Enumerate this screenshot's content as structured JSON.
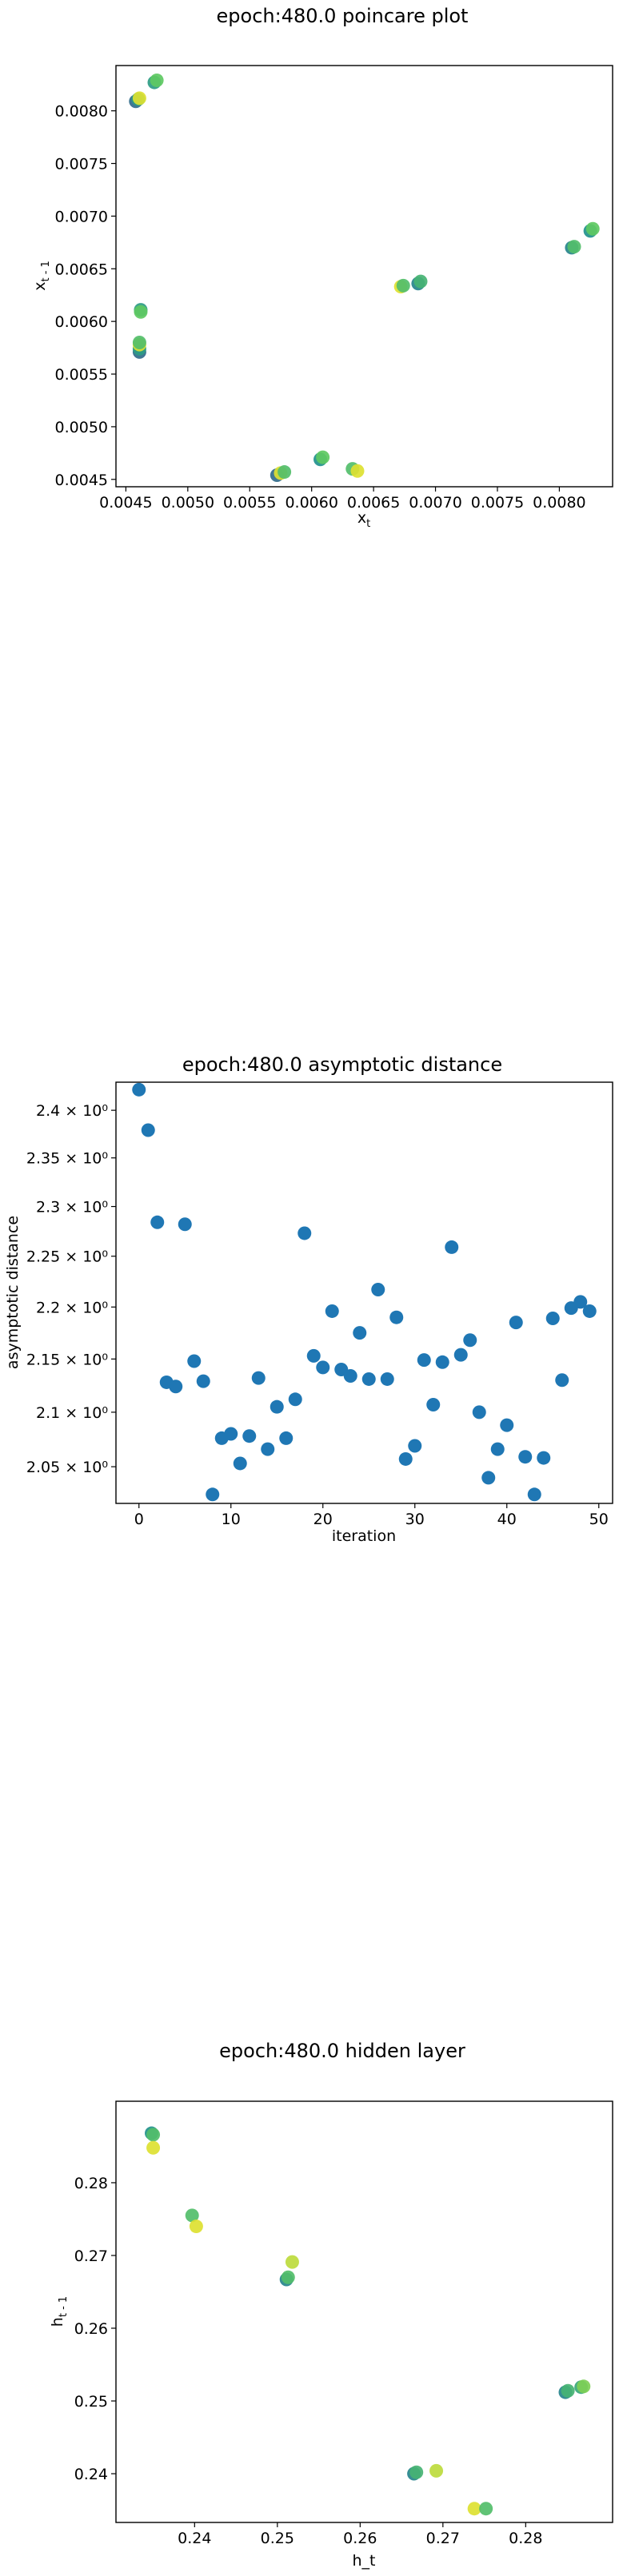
{
  "charts_meta": {
    "accent": "#1f77b4"
  },
  "chart_data": [
    {
      "id": "poincare",
      "type": "scatter",
      "title": "epoch:480.0 poincare plot",
      "xlabel": "x",
      "xlabel_sub": "t",
      "ylabel": "x",
      "ylabel_sub": "t - 1",
      "xlim": [
        0.00442,
        0.00843
      ],
      "ylim": [
        0.00443,
        0.00843
      ],
      "xticks": [
        0.0045,
        0.005,
        0.0055,
        0.006,
        0.0065,
        0.007,
        0.0075,
        0.008
      ],
      "xtick_labels": [
        "0.0045",
        "0.0050",
        "0.0055",
        "0.0060",
        "0.0065",
        "0.0070",
        "0.0075",
        "0.0080"
      ],
      "yticks": [
        0.0045,
        0.005,
        0.0055,
        0.006,
        0.0065,
        0.007,
        0.0075,
        0.008
      ],
      "ytick_labels": [
        "0.0045",
        "0.0050",
        "0.0055",
        "0.0060",
        "0.0065",
        "0.0070",
        "0.0075",
        "0.0080"
      ],
      "colormap": "viridis",
      "grid": false,
      "points": [
        {
          "x": 0.00458,
          "y": 0.00809,
          "c": 0.35
        },
        {
          "x": 0.0046,
          "y": 0.00811,
          "c": 0.55
        },
        {
          "x": 0.00461,
          "y": 0.00812,
          "c": 0.95
        },
        {
          "x": 0.00473,
          "y": 0.00827,
          "c": 0.55
        },
        {
          "x": 0.00475,
          "y": 0.00829,
          "c": 0.75
        },
        {
          "x": 0.00462,
          "y": 0.00611,
          "c": 0.55
        },
        {
          "x": 0.00462,
          "y": 0.00609,
          "c": 0.75
        },
        {
          "x": 0.00461,
          "y": 0.00571,
          "c": 0.35
        },
        {
          "x": 0.00461,
          "y": 0.00574,
          "c": 0.55
        },
        {
          "x": 0.00461,
          "y": 0.00578,
          "c": 0.95
        },
        {
          "x": 0.00461,
          "y": 0.0058,
          "c": 0.7
        },
        {
          "x": 0.00572,
          "y": 0.00454,
          "c": 0.35
        },
        {
          "x": 0.00575,
          "y": 0.00456,
          "c": 0.95
        },
        {
          "x": 0.00578,
          "y": 0.00457,
          "c": 0.7
        },
        {
          "x": 0.00607,
          "y": 0.00469,
          "c": 0.5
        },
        {
          "x": 0.00609,
          "y": 0.00471,
          "c": 0.75
        },
        {
          "x": 0.00633,
          "y": 0.0046,
          "c": 0.7
        },
        {
          "x": 0.00637,
          "y": 0.00458,
          "c": 0.95
        },
        {
          "x": 0.00672,
          "y": 0.00633,
          "c": 0.95
        },
        {
          "x": 0.00674,
          "y": 0.00634,
          "c": 0.7
        },
        {
          "x": 0.00686,
          "y": 0.00636,
          "c": 0.45
        },
        {
          "x": 0.00688,
          "y": 0.00638,
          "c": 0.65
        },
        {
          "x": 0.0081,
          "y": 0.0067,
          "c": 0.45
        },
        {
          "x": 0.00812,
          "y": 0.00671,
          "c": 0.7
        },
        {
          "x": 0.00825,
          "y": 0.00686,
          "c": 0.5
        },
        {
          "x": 0.00827,
          "y": 0.00688,
          "c": 0.75
        }
      ]
    },
    {
      "id": "asymptotic",
      "type": "scatter",
      "title": "epoch:480.0 asymptotic distance",
      "xlabel": "iteration",
      "ylabel": "asymptotic distance",
      "xlim": [
        -2.5,
        51.5
      ],
      "ylim": [
        2.017,
        2.43
      ],
      "log_y": true,
      "xticks": [
        0,
        10,
        20,
        30,
        40,
        50
      ],
      "xtick_labels": [
        "0",
        "10",
        "20",
        "30",
        "40",
        "50"
      ],
      "yticks": [
        2.05,
        2.1,
        2.15,
        2.2,
        2.25,
        2.3,
        2.35,
        2.4
      ],
      "ytick_labels": [
        "2.05 × 10⁰",
        "2.1 × 10⁰",
        "2.15 × 10⁰",
        "2.2 × 10⁰",
        "2.25 × 10⁰",
        "2.3 × 10⁰",
        "2.35 × 10⁰",
        "2.4 × 10⁰"
      ],
      "color": "#1f77b4",
      "grid": false,
      "x": [
        0,
        1,
        2,
        3,
        4,
        5,
        6,
        7,
        8,
        9,
        10,
        11,
        12,
        13,
        14,
        15,
        16,
        17,
        18,
        19,
        20,
        21,
        22,
        23,
        24,
        25,
        26,
        27,
        28,
        29,
        30,
        31,
        32,
        33,
        34,
        35,
        36,
        37,
        38,
        39,
        40,
        41,
        42,
        43,
        44,
        45,
        46,
        47,
        48,
        49
      ],
      "y": [
        2.422,
        2.379,
        2.284,
        2.128,
        2.124,
        2.282,
        2.148,
        2.129,
        2.025,
        2.076,
        2.08,
        2.053,
        2.078,
        2.132,
        2.066,
        2.105,
        2.076,
        2.112,
        2.273,
        2.153,
        2.142,
        2.196,
        2.14,
        2.134,
        2.175,
        2.131,
        2.217,
        2.131,
        2.19,
        2.057,
        2.069,
        2.149,
        2.107,
        2.147,
        2.259,
        2.154,
        2.168,
        2.1,
        2.04,
        2.066,
        2.088,
        2.185,
        2.059,
        2.025,
        2.058,
        2.189,
        2.13,
        2.199,
        2.205,
        2.196
      ]
    },
    {
      "id": "hidden",
      "type": "scatter",
      "title": "epoch:480.0 hidden layer",
      "xlabel": "h_t",
      "ylabel": "h",
      "ylabel_sub": "t - 1",
      "xlim": [
        0.2305,
        0.2905
      ],
      "ylim": [
        0.2333,
        0.2912
      ],
      "xticks": [
        0.24,
        0.25,
        0.26,
        0.27,
        0.28
      ],
      "xtick_labels": [
        "0.24",
        "0.25",
        "0.26",
        "0.27",
        "0.28"
      ],
      "yticks": [
        0.24,
        0.25,
        0.26,
        0.27,
        0.28
      ],
      "ytick_labels": [
        "0.24",
        "0.25",
        "0.26",
        "0.27",
        "0.28"
      ],
      "colormap": "viridis",
      "grid": false,
      "points": [
        {
          "x": 0.2348,
          "y": 0.2868,
          "c": 0.5
        },
        {
          "x": 0.235,
          "y": 0.2866,
          "c": 0.7
        },
        {
          "x": 0.235,
          "y": 0.2848,
          "c": 0.95
        },
        {
          "x": 0.2397,
          "y": 0.2755,
          "c": 0.7
        },
        {
          "x": 0.2402,
          "y": 0.274,
          "c": 0.95
        },
        {
          "x": 0.2511,
          "y": 0.2667,
          "c": 0.45
        },
        {
          "x": 0.2513,
          "y": 0.267,
          "c": 0.7
        },
        {
          "x": 0.2518,
          "y": 0.2691,
          "c": 0.9
        },
        {
          "x": 0.2665,
          "y": 0.24,
          "c": 0.45
        },
        {
          "x": 0.2668,
          "y": 0.2402,
          "c": 0.65
        },
        {
          "x": 0.2692,
          "y": 0.2404,
          "c": 0.9
        },
        {
          "x": 0.2738,
          "y": 0.2352,
          "c": 0.95
        },
        {
          "x": 0.2752,
          "y": 0.2352,
          "c": 0.7
        },
        {
          "x": 0.2848,
          "y": 0.2512,
          "c": 0.45
        },
        {
          "x": 0.2851,
          "y": 0.2514,
          "c": 0.65
        },
        {
          "x": 0.2867,
          "y": 0.2519,
          "c": 0.6
        },
        {
          "x": 0.287,
          "y": 0.252,
          "c": 0.8
        }
      ]
    }
  ]
}
